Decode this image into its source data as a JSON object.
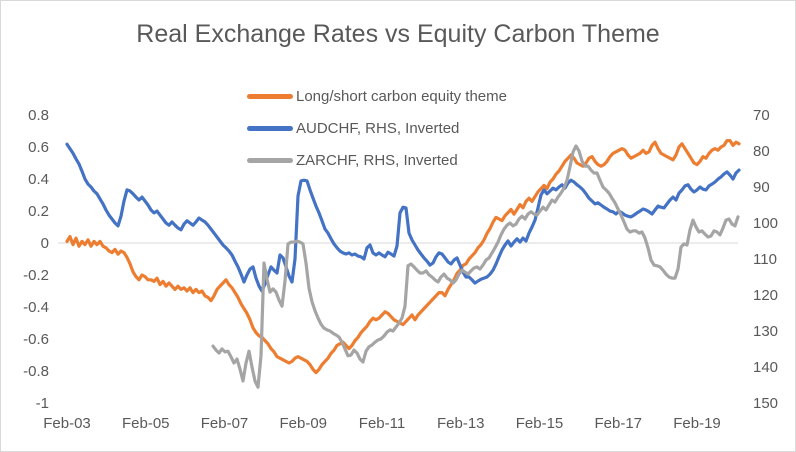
{
  "title": "Real Exchange Rates vs Equity Carbon Theme",
  "chart_data": {
    "type": "line",
    "title": "Real Exchange Rates vs Equity Carbon Theme",
    "xlabel": "",
    "ylabel": "",
    "legend_position": "top-center",
    "grid": "single horizontal gridline at left-axis 0",
    "gridlines": [
      0
    ],
    "style": {
      "background": "#ffffff",
      "text_color": "#595959",
      "gridline_color": "#d9d9d9",
      "border_color": "#d9d9d9"
    },
    "x_axis": {
      "ticks": [
        {
          "label": "Feb-03",
          "year": 2003.083
        },
        {
          "label": "Feb-05",
          "year": 2005.083
        },
        {
          "label": "Feb-07",
          "year": 2007.083
        },
        {
          "label": "Feb-09",
          "year": 2009.083
        },
        {
          "label": "Feb-11",
          "year": 2011.083
        },
        {
          "label": "Feb-13",
          "year": 2013.083
        },
        {
          "label": "Feb-15",
          "year": 2015.083
        },
        {
          "label": "Feb-17",
          "year": 2017.083
        },
        {
          "label": "Feb-19",
          "year": 2019.083
        }
      ]
    },
    "axes": {
      "left": {
        "min": -1,
        "max": 0.8,
        "inverted": false,
        "tick_labels": [
          "0.8",
          "0.6",
          "0.4",
          "0.2",
          "0",
          "-0.2",
          "-0.4",
          "-0.6",
          "-0.8",
          "-1"
        ],
        "tick_values": [
          0.8,
          0.6,
          0.4,
          0.2,
          0,
          -0.2,
          -0.4,
          -0.6,
          -0.8,
          -1
        ]
      },
      "right": {
        "min": 70,
        "max": 150,
        "inverted": true,
        "tick_labels": [
          "70",
          "80",
          "90",
          "100",
          "110",
          "120",
          "130",
          "140",
          "150"
        ],
        "tick_values": [
          70,
          80,
          90,
          100,
          110,
          120,
          130,
          140,
          150
        ]
      }
    },
    "series": [
      {
        "id": "carbon-theme",
        "name": "Long/short carbon equity theme",
        "color": "#ED7D31",
        "axis": "left",
        "x_start": 2003.083,
        "x_step": 0.07619,
        "values": [
          0.01,
          0.04,
          -0.01,
          0.03,
          -0.02,
          0.01,
          -0.01,
          0.02,
          -0.02,
          0.01,
          -0.01,
          0.01,
          -0.02,
          -0.03,
          -0.05,
          -0.06,
          -0.04,
          -0.07,
          -0.05,
          -0.06,
          -0.09,
          -0.13,
          -0.18,
          -0.21,
          -0.23,
          -0.2,
          -0.21,
          -0.23,
          -0.23,
          -0.24,
          -0.22,
          -0.26,
          -0.24,
          -0.27,
          -0.25,
          -0.27,
          -0.29,
          -0.27,
          -0.29,
          -0.28,
          -0.3,
          -0.28,
          -0.31,
          -0.29,
          -0.31,
          -0.3,
          -0.33,
          -0.34,
          -0.36,
          -0.33,
          -0.29,
          -0.27,
          -0.25,
          -0.23,
          -0.26,
          -0.28,
          -0.31,
          -0.34,
          -0.38,
          -0.41,
          -0.44,
          -0.48,
          -0.53,
          -0.56,
          -0.58,
          -0.59,
          -0.61,
          -0.63,
          -0.66,
          -0.68,
          -0.71,
          -0.72,
          -0.73,
          -0.74,
          -0.75,
          -0.74,
          -0.72,
          -0.71,
          -0.72,
          -0.73,
          -0.74,
          -0.76,
          -0.79,
          -0.81,
          -0.79,
          -0.76,
          -0.74,
          -0.72,
          -0.69,
          -0.67,
          -0.64,
          -0.63,
          -0.62,
          -0.64,
          -0.66,
          -0.64,
          -0.61,
          -0.59,
          -0.56,
          -0.54,
          -0.52,
          -0.49,
          -0.47,
          -0.48,
          -0.47,
          -0.45,
          -0.43,
          -0.44,
          -0.46,
          -0.48,
          -0.49,
          -0.5,
          -0.51,
          -0.49,
          -0.47,
          -0.45,
          -0.48,
          -0.45,
          -0.43,
          -0.41,
          -0.39,
          -0.37,
          -0.35,
          -0.33,
          -0.31,
          -0.31,
          -0.33,
          -0.29,
          -0.26,
          -0.23,
          -0.19,
          -0.17,
          -0.14,
          -0.13,
          -0.1,
          -0.08,
          -0.06,
          -0.03,
          -0.01,
          0.02,
          0.06,
          0.09,
          0.13,
          0.16,
          0.15,
          0.14,
          0.17,
          0.19,
          0.21,
          0.18,
          0.21,
          0.24,
          0.22,
          0.26,
          0.28,
          0.26,
          0.29,
          0.32,
          0.34,
          0.36,
          0.34,
          0.38,
          0.4,
          0.43,
          0.45,
          0.48,
          0.51,
          0.53,
          0.55,
          0.53,
          0.5,
          0.49,
          0.48,
          0.5,
          0.53,
          0.54,
          0.51,
          0.49,
          0.48,
          0.49,
          0.51,
          0.54,
          0.56,
          0.57,
          0.58,
          0.59,
          0.58,
          0.55,
          0.53,
          0.54,
          0.55,
          0.56,
          0.58,
          0.56,
          0.57,
          0.61,
          0.63,
          0.59,
          0.56,
          0.55,
          0.54,
          0.53,
          0.52,
          0.55,
          0.6,
          0.62,
          0.59,
          0.56,
          0.53,
          0.5,
          0.49,
          0.51,
          0.54,
          0.53,
          0.56,
          0.58,
          0.59,
          0.58,
          0.6,
          0.61,
          0.64,
          0.64,
          0.61,
          0.63,
          0.62
        ]
      },
      {
        "id": "audchf",
        "name": "AUDCHF, RHS, Inverted",
        "color": "#4472C4",
        "axis": "right",
        "x_start": 2003.083,
        "x_step": 0.07619,
        "values": [
          78.1,
          79.4,
          80.6,
          82.2,
          83.6,
          85.6,
          87.8,
          89.2,
          90,
          91.1,
          91.9,
          93.3,
          94.7,
          96.4,
          97.8,
          98.9,
          100,
          100.8,
          98.1,
          93.9,
          90.8,
          91.1,
          91.9,
          92.8,
          93.6,
          92.8,
          93.9,
          95,
          96.4,
          97.2,
          96.7,
          97.8,
          98.9,
          100,
          100.6,
          99.7,
          100.6,
          101.4,
          101.9,
          100.3,
          99.4,
          100,
          100.6,
          99.7,
          98.6,
          99.2,
          99.7,
          100.6,
          101.7,
          102.8,
          103.9,
          105,
          106.1,
          106.9,
          107.8,
          108.9,
          110.6,
          112.2,
          114.2,
          116.4,
          114.4,
          112.8,
          112.2,
          115.3,
          117.5,
          118.9,
          116.9,
          114.4,
          112.2,
          113.1,
          113.9,
          108.9,
          109.7,
          112.2,
          114.7,
          116.4,
          110,
          92.5,
          88.3,
          88.1,
          88.3,
          90.8,
          93.1,
          95.3,
          97.2,
          99.4,
          101.7,
          102.8,
          104.4,
          105.8,
          106.9,
          107.8,
          108.3,
          108.6,
          108.3,
          108.9,
          108.6,
          109.2,
          109.4,
          110,
          106.9,
          106.1,
          108.3,
          108.9,
          108.3,
          108.9,
          109.4,
          108.1,
          108.6,
          109.2,
          106.4,
          97.2,
          95.6,
          95.8,
          102.8,
          104.7,
          106.1,
          107.5,
          108.6,
          109.7,
          110.6,
          111.7,
          111.1,
          109.4,
          108.3,
          108.6,
          109.7,
          110.8,
          111.4,
          110.3,
          109.7,
          111.7,
          113.6,
          115,
          115,
          115.8,
          116.7,
          116.1,
          115.6,
          115.3,
          115,
          114.2,
          113.1,
          111.4,
          109.4,
          107.5,
          106.1,
          105,
          106.4,
          105.3,
          104.4,
          105.3,
          104.2,
          105,
          102.8,
          101.1,
          99.2,
          95.8,
          92.2,
          90.8,
          91.9,
          91.1,
          90.3,
          90.8,
          90,
          89.4,
          90.3,
          88.9,
          88.1,
          88.6,
          89.4,
          90,
          90.8,
          91.9,
          93.1,
          93.9,
          94.7,
          94.4,
          95,
          95.6,
          96.1,
          96.7,
          96.9,
          97.5,
          96.7,
          97.2,
          97.8,
          98.1,
          98.3,
          97.8,
          97.2,
          96.7,
          96.1,
          96.4,
          96.9,
          97.5,
          96.4,
          95.3,
          95.6,
          95.8,
          94.7,
          93.6,
          92.8,
          93.6,
          91.7,
          90.8,
          89.7,
          89.4,
          90.6,
          91.4,
          90.8,
          90,
          90.6,
          90.8,
          89.7,
          89.2,
          88.6,
          87.8,
          87.2,
          86.4,
          85.8,
          86.7,
          87.8,
          86.1,
          85.3
        ]
      },
      {
        "id": "zarchf",
        "name": "ZARCHF, RHS, Inverted",
        "color": "#A5A5A5",
        "axis": "right",
        "x_start": 2006.79,
        "x_step": 0.07619,
        "values": [
          134.2,
          135.3,
          136.1,
          135,
          135.8,
          135.6,
          137.2,
          138.9,
          137.8,
          140.6,
          143.9,
          138.9,
          135.6,
          140,
          143.9,
          145.6,
          136.9,
          111.1,
          115.6,
          119.2,
          118.3,
          119.2,
          121.4,
          123.1,
          116.1,
          105.8,
          105.3,
          105.3,
          105,
          105.3,
          105.8,
          111.1,
          118.1,
          121.9,
          124.4,
          126.4,
          128.1,
          129.2,
          129.7,
          130,
          130.6,
          131.1,
          131.7,
          133.1,
          135,
          136.9,
          136.7,
          135.3,
          136.1,
          137.8,
          138.6,
          135.6,
          134.4,
          133.9,
          133.1,
          132.5,
          132.2,
          131.4,
          130.3,
          129.7,
          130,
          128.9,
          127.8,
          126.4,
          123.1,
          111.9,
          111.4,
          112.2,
          113.1,
          113.9,
          113.9,
          113.3,
          114.4,
          115,
          115.8,
          116.4,
          115,
          114.2,
          115.3,
          115.8,
          116.7,
          115.8,
          114.2,
          113.1,
          113.6,
          114.2,
          113.3,
          112.5,
          112.2,
          112.8,
          111.7,
          110.3,
          109.7,
          108.3,
          106.9,
          105.3,
          103.3,
          101.7,
          100.6,
          100,
          100.8,
          100.3,
          98.9,
          98.1,
          98.9,
          97.5,
          96.9,
          97.5,
          97.8,
          96.7,
          95.6,
          96.4,
          95,
          93.6,
          94.2,
          92.8,
          91.7,
          90.3,
          88.1,
          84.4,
          80.3,
          78.6,
          80,
          82.8,
          84.2,
          84.2,
          85.3,
          86.1,
          86.1,
          88.1,
          90,
          90.8,
          91.7,
          93.1,
          94.4,
          96.1,
          97.8,
          99.7,
          101.7,
          102.5,
          102.2,
          102.2,
          102.8,
          102.5,
          104.2,
          106.9,
          110.3,
          111.7,
          111.9,
          112.2,
          113.1,
          114.2,
          115,
          115.3,
          115.3,
          112.8,
          106.7,
          105.8,
          106.1,
          101.9,
          99.2,
          101.1,
          102.5,
          102.2,
          103.1,
          103.9,
          103.6,
          102.2,
          102.5,
          103.3,
          101.4,
          99.2,
          98.9,
          100.3,
          100.8,
          98.3
        ]
      }
    ]
  }
}
